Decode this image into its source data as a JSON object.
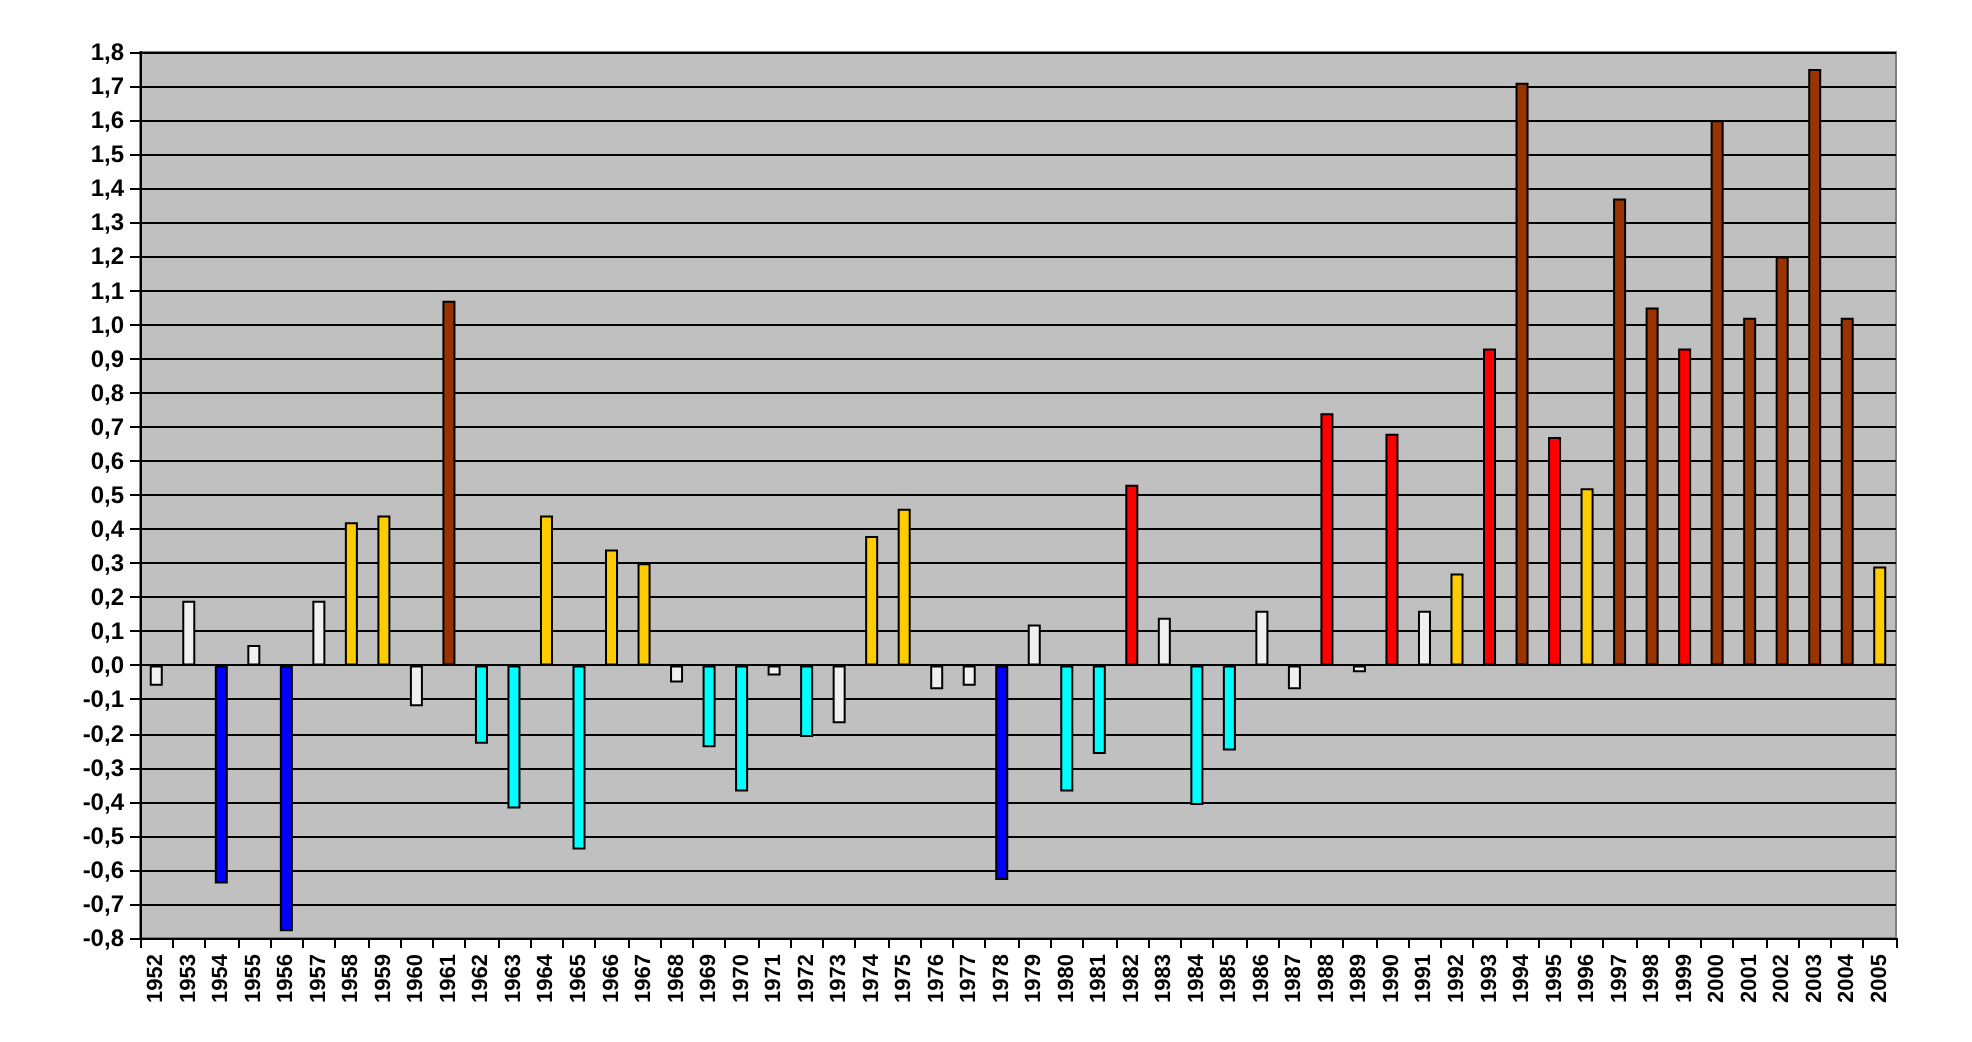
{
  "chart_data": {
    "type": "bar",
    "categories": [
      "1952",
      "1953",
      "1954",
      "1955",
      "1956",
      "1957",
      "1958",
      "1959",
      "1960",
      "1961",
      "1962",
      "1963",
      "1964",
      "1965",
      "1966",
      "1967",
      "1968",
      "1969",
      "1970",
      "1971",
      "1972",
      "1973",
      "1974",
      "1975",
      "1976",
      "1977",
      "1978",
      "1979",
      "1980",
      "1981",
      "1982",
      "1983",
      "1984",
      "1985",
      "1986",
      "1987",
      "1988",
      "1989",
      "1990",
      "1991",
      "1992",
      "1993",
      "1994",
      "1995",
      "1996",
      "1997",
      "1998",
      "1999",
      "2000",
      "2001",
      "2002",
      "2003",
      "2004",
      "2005"
    ],
    "values": [
      -0.06,
      0.19,
      -0.64,
      0.06,
      -0.78,
      0.19,
      0.42,
      0.44,
      -0.12,
      1.07,
      -0.23,
      -0.42,
      0.44,
      -0.54,
      0.34,
      0.3,
      -0.05,
      -0.24,
      -0.37,
      -0.03,
      -0.21,
      -0.17,
      0.38,
      0.46,
      -0.07,
      -0.06,
      -0.63,
      0.12,
      -0.37,
      -0.26,
      0.53,
      0.14,
      -0.41,
      -0.25,
      0.16,
      -0.07,
      0.74,
      -0.02,
      0.68,
      0.16,
      0.27,
      0.93,
      1.71,
      0.67,
      0.52,
      1.37,
      1.05,
      0.93,
      1.6,
      1.02,
      1.2,
      1.75,
      1.02,
      0.29
    ],
    "colors": [
      "#f0f0f0",
      "#f0f0f0",
      "#0000ff",
      "#f0f0f0",
      "#0000ff",
      "#f0f0f0",
      "#ffcc00",
      "#ffcc00",
      "#f0f0f0",
      "#993300",
      "#00ffff",
      "#00ffff",
      "#ffcc00",
      "#00ffff",
      "#ffcc00",
      "#ffcc00",
      "#f0f0f0",
      "#00ffff",
      "#00ffff",
      "#f0f0f0",
      "#00ffff",
      "#f0f0f0",
      "#ffcc00",
      "#ffcc00",
      "#f0f0f0",
      "#f0f0f0",
      "#0000ff",
      "#f0f0f0",
      "#00ffff",
      "#00ffff",
      "#ff0000",
      "#f0f0f0",
      "#00ffff",
      "#00ffff",
      "#f0f0f0",
      "#f0f0f0",
      "#ff0000",
      "#f0f0f0",
      "#ff0000",
      "#f0f0f0",
      "#ffcc00",
      "#ff0000",
      "#993300",
      "#ff0000",
      "#ffcc00",
      "#993300",
      "#993300",
      "#ff0000",
      "#993300",
      "#993300",
      "#993300",
      "#993300",
      "#993300",
      "#ffcc00"
    ],
    "ylim": [
      -0.8,
      1.8
    ],
    "yticks": [
      {
        "value": -0.8,
        "label": "-0,8"
      },
      {
        "value": -0.7,
        "label": "-0,7"
      },
      {
        "value": -0.6,
        "label": "-0,6"
      },
      {
        "value": -0.5,
        "label": "-0,5"
      },
      {
        "value": -0.4,
        "label": "-0,4"
      },
      {
        "value": -0.3,
        "label": "-0,3"
      },
      {
        "value": -0.2,
        "label": "-0,2"
      },
      {
        "value": -0.1,
        "label": "-0,1"
      },
      {
        "value": 0,
        "label": "0,0"
      },
      {
        "value": 0.1,
        "label": "0,1"
      },
      {
        "value": 0.2,
        "label": "0,2"
      },
      {
        "value": 0.3,
        "label": "0,3"
      },
      {
        "value": 0.4,
        "label": "0,4"
      },
      {
        "value": 0.5,
        "label": "0,5"
      },
      {
        "value": 0.6,
        "label": "0,6"
      },
      {
        "value": 0.7,
        "label": "0,7"
      },
      {
        "value": 0.8,
        "label": "0,8"
      },
      {
        "value": 0.9,
        "label": "0,9"
      },
      {
        "value": 1.0,
        "label": "1,0"
      },
      {
        "value": 1.1,
        "label": "1,1"
      },
      {
        "value": 1.2,
        "label": "1,2"
      },
      {
        "value": 1.3,
        "label": "1,3"
      },
      {
        "value": 1.4,
        "label": "1,4"
      },
      {
        "value": 1.5,
        "label": "1,5"
      },
      {
        "value": 1.6,
        "label": "1,6"
      },
      {
        "value": 1.7,
        "label": "1,7"
      },
      {
        "value": 1.8,
        "label": "1,8"
      }
    ],
    "grid": "y"
  }
}
